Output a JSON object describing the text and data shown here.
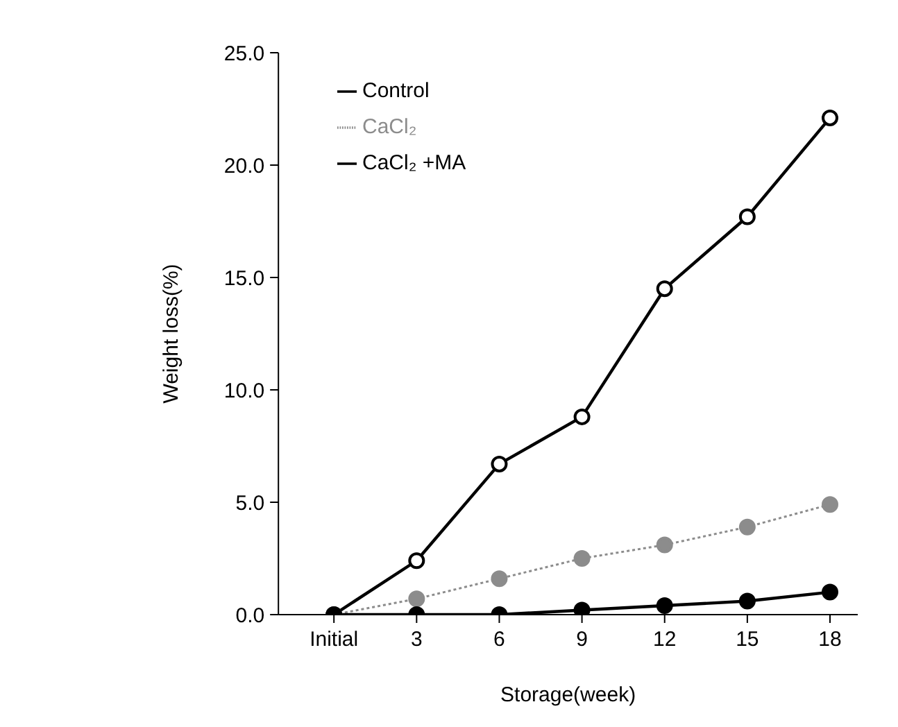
{
  "chart_data": {
    "type": "line",
    "xlabel": "Storage(week)",
    "ylabel": "Weight loss(%)",
    "categories": [
      "Initial",
      "3",
      "6",
      "9",
      "12",
      "15",
      "18"
    ],
    "series": [
      {
        "name": "Control",
        "color": "#000000",
        "values": [
          0,
          2.4,
          6.7,
          8.8,
          14.5,
          17.7,
          22.1
        ],
        "line_style": "solid"
      },
      {
        "name": "CaCl₂",
        "color": "#8c8c8c",
        "values": [
          0,
          0.7,
          1.6,
          2.5,
          3.1,
          3.9,
          4.9
        ],
        "line_style": "dotted"
      },
      {
        "name": "CaCl₂ +MA",
        "color": "#000000",
        "values": [
          0,
          0,
          0,
          0.2,
          0.4,
          0.6,
          1.0
        ],
        "line_style": "solid"
      }
    ],
    "ylim": [
      0,
      25
    ],
    "yticks": [
      {
        "value": 0,
        "label": "0.0"
      },
      {
        "value": 5,
        "label": "5.0"
      },
      {
        "value": 10,
        "label": "10.0"
      },
      {
        "value": 15,
        "label": "15.0"
      },
      {
        "value": 20,
        "label": "20.0"
      },
      {
        "value": 25,
        "label": "25.0"
      }
    ],
    "grid": false,
    "legend": "top left",
    "marker": "circle"
  }
}
